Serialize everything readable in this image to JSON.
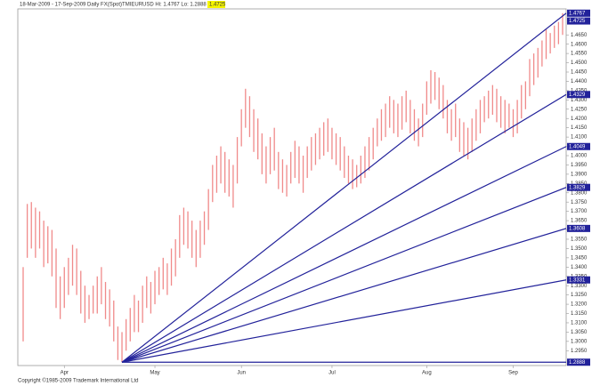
{
  "chart_data": {
    "type": "ohlc",
    "title": "18-Mar-2009 - 17-Sep-2009 Daily FX(Spot)TMIEURUSD  Hi: 1.4767 Lo: 1.2888",
    "last_price": "1.4725",
    "footer": "Copyright ©1985-2009 Trademark International Ltd",
    "categories": [
      null,
      null,
      null,
      null,
      null,
      null,
      null,
      null,
      null,
      null,
      "Apr",
      null,
      null,
      null,
      null,
      null,
      null,
      null,
      null,
      null,
      null,
      null,
      null,
      null,
      null,
      null,
      null,
      null,
      null,
      null,
      null,
      null,
      "May",
      null,
      null,
      null,
      null,
      null,
      null,
      null,
      null,
      null,
      null,
      null,
      null,
      null,
      null,
      null,
      null,
      null,
      null,
      null,
      null,
      "Jun",
      null,
      null,
      null,
      null,
      null,
      null,
      null,
      null,
      null,
      null,
      null,
      null,
      null,
      null,
      null,
      null,
      null,
      null,
      null,
      null,
      null,
      "Jul",
      null,
      null,
      null,
      null,
      null,
      null,
      null,
      null,
      null,
      null,
      null,
      null,
      null,
      null,
      null,
      null,
      null,
      null,
      null,
      null,
      null,
      null,
      "Aug",
      null,
      null,
      null,
      null,
      null,
      null,
      null,
      null,
      null,
      null,
      null,
      null,
      null,
      null,
      null,
      null,
      null,
      null,
      null,
      null,
      "Sep",
      null,
      null,
      null,
      null,
      null,
      null,
      null,
      null,
      null,
      null,
      null,
      null
    ],
    "series": [
      {
        "name": "High",
        "color": "#f08a8a",
        "values": [
          1.34,
          1.374,
          1.375,
          1.372,
          1.37,
          1.365,
          1.362,
          1.36,
          1.35,
          1.335,
          1.34,
          1.345,
          1.352,
          1.35,
          1.338,
          1.33,
          1.325,
          1.33,
          1.335,
          1.34,
          1.332,
          1.328,
          1.322,
          1.308,
          1.305,
          1.312,
          1.318,
          1.325,
          1.322,
          1.33,
          1.335,
          1.332,
          1.338,
          1.34,
          1.345,
          1.342,
          1.35,
          1.355,
          1.368,
          1.372,
          1.37,
          1.365,
          1.36,
          1.365,
          1.37,
          1.382,
          1.395,
          1.4,
          1.405,
          1.402,
          1.398,
          1.395,
          1.41,
          1.425,
          1.436,
          1.432,
          1.425,
          1.42,
          1.412,
          1.405,
          1.41,
          1.415,
          1.402,
          1.398,
          1.395,
          1.402,
          1.408,
          1.405,
          1.4,
          1.405,
          1.41,
          1.412,
          1.415,
          1.418,
          1.42,
          1.415,
          1.412,
          1.41,
          1.405,
          1.4,
          1.398,
          1.395,
          1.4,
          1.405,
          1.41,
          1.415,
          1.42,
          1.425,
          1.428,
          1.432,
          1.43,
          1.428,
          1.432,
          1.435,
          1.43,
          1.425,
          1.42,
          1.428,
          1.44,
          1.446,
          1.445,
          1.442,
          1.438,
          1.43,
          1.425,
          1.428,
          1.42,
          1.418,
          1.415,
          1.42,
          1.425,
          1.43,
          1.432,
          1.435,
          1.438,
          1.436,
          1.432,
          1.43,
          1.428,
          1.425,
          1.43,
          1.438,
          1.44,
          1.452,
          1.455,
          1.458,
          1.462,
          1.468,
          1.466,
          1.47,
          1.472,
          1.4767
        ]
      },
      {
        "name": "Low",
        "color": "#f08a8a",
        "values": [
          1.3,
          1.345,
          1.35,
          1.345,
          1.35,
          1.34,
          1.342,
          1.335,
          1.318,
          1.312,
          1.318,
          1.325,
          1.33,
          1.325,
          1.315,
          1.31,
          1.312,
          1.315,
          1.315,
          1.32,
          1.312,
          1.308,
          1.3,
          1.29,
          1.2888,
          1.295,
          1.3,
          1.305,
          1.305,
          1.31,
          1.318,
          1.315,
          1.32,
          1.325,
          1.328,
          1.325,
          1.33,
          1.335,
          1.345,
          1.352,
          1.35,
          1.345,
          1.34,
          1.345,
          1.352,
          1.36,
          1.375,
          1.38,
          1.385,
          1.38,
          1.378,
          1.372,
          1.385,
          1.405,
          1.415,
          1.41,
          1.402,
          1.398,
          1.39,
          1.385,
          1.39,
          1.392,
          1.382,
          1.38,
          1.378,
          1.385,
          1.388,
          1.385,
          1.38,
          1.388,
          1.392,
          1.395,
          1.398,
          1.4,
          1.402,
          1.398,
          1.395,
          1.392,
          1.388,
          1.385,
          1.382,
          1.383,
          1.385,
          1.388,
          1.392,
          1.398,
          1.405,
          1.408,
          1.41,
          1.415,
          1.412,
          1.41,
          1.414,
          1.418,
          1.412,
          1.408,
          1.405,
          1.41,
          1.422,
          1.428,
          1.43,
          1.425,
          1.42,
          1.412,
          1.408,
          1.41,
          1.402,
          1.4,
          1.398,
          1.402,
          1.408,
          1.412,
          1.418,
          1.42,
          1.422,
          1.418,
          1.415,
          1.412,
          1.415,
          1.41,
          1.412,
          1.42,
          1.425,
          1.432,
          1.438,
          1.442,
          1.448,
          1.452,
          1.455,
          1.458,
          1.46,
          1.465
        ]
      }
    ],
    "fan_lines": {
      "color": "#22229a",
      "values": [
        1.4767,
        1.4329,
        1.4049,
        1.3829,
        1.3608,
        1.3331,
        1.2888
      ],
      "value_labels": [
        "1.4767",
        "1.4329",
        "1.4049",
        "1.3829",
        "1.3608",
        "1.3331",
        "1.2888"
      ]
    },
    "ylim": [
      1.287,
      1.479
    ],
    "yticks": [
      {
        "value": 1.295,
        "label": "1.2950"
      },
      {
        "value": 1.3,
        "label": "1.3000"
      },
      {
        "value": 1.305,
        "label": "1.3050"
      },
      {
        "value": 1.31,
        "label": "1.3100"
      },
      {
        "value": 1.315,
        "label": "1.3150"
      },
      {
        "value": 1.32,
        "label": "1.3200"
      },
      {
        "value": 1.325,
        "label": "1.3250"
      },
      {
        "value": 1.33,
        "label": "1.3300"
      },
      {
        "value": 1.335,
        "label": "1.3350"
      },
      {
        "value": 1.34,
        "label": "1.3400"
      },
      {
        "value": 1.345,
        "label": "1.3450"
      },
      {
        "value": 1.35,
        "label": "1.3500"
      },
      {
        "value": 1.355,
        "label": "1.3550"
      },
      {
        "value": 1.36,
        "label": "1.3600"
      },
      {
        "value": 1.365,
        "label": "1.3650"
      },
      {
        "value": 1.37,
        "label": "1.3700"
      },
      {
        "value": 1.375,
        "label": "1.3750"
      },
      {
        "value": 1.38,
        "label": "1.3800"
      },
      {
        "value": 1.385,
        "label": "1.3850"
      },
      {
        "value": 1.39,
        "label": "1.3900"
      },
      {
        "value": 1.395,
        "label": "1.3950"
      },
      {
        "value": 1.4,
        "label": "1.4000"
      },
      {
        "value": 1.405,
        "label": "1.4050"
      },
      {
        "value": 1.41,
        "label": "1.4100"
      },
      {
        "value": 1.415,
        "label": "1.4150"
      },
      {
        "value": 1.42,
        "label": "1.4200"
      },
      {
        "value": 1.425,
        "label": "1.4250"
      },
      {
        "value": 1.43,
        "label": "1.4300"
      },
      {
        "value": 1.435,
        "label": "1.4350"
      },
      {
        "value": 1.44,
        "label": "1.4400"
      },
      {
        "value": 1.445,
        "label": "1.4450"
      },
      {
        "value": 1.45,
        "label": "1.4500"
      },
      {
        "value": 1.455,
        "label": "1.4550"
      },
      {
        "value": 1.46,
        "label": "1.4600"
      },
      {
        "value": 1.465,
        "label": "1.4650"
      }
    ],
    "grid": false
  }
}
